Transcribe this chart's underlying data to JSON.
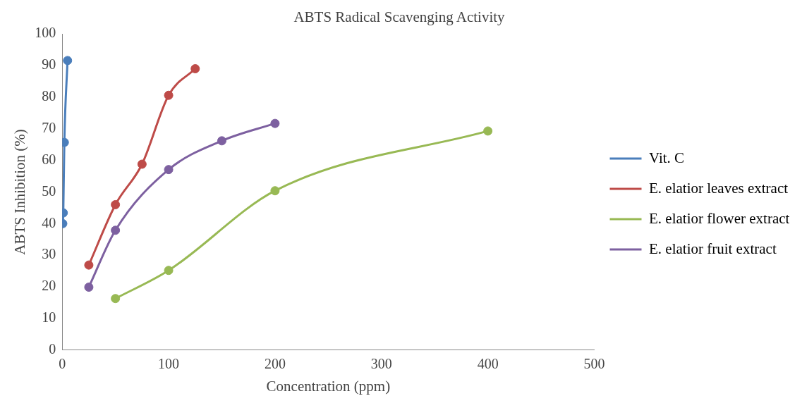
{
  "chart_data": {
    "type": "line",
    "title": "ABTS Radical Scavenging Activity",
    "xlabel": "Concentration (ppm)",
    "ylabel": "ABTS Inhibition (%)",
    "xlim": [
      0,
      500
    ],
    "xticks": [
      0,
      100,
      200,
      300,
      400,
      500
    ],
    "ylim": [
      0,
      100
    ],
    "yticks": [
      0,
      10,
      20,
      30,
      40,
      50,
      60,
      70,
      80,
      90,
      100
    ],
    "grid": false,
    "legend": "right",
    "marker": "circle",
    "line_style": "solid",
    "series": [
      {
        "name": "Vit. C",
        "color": "#4a7ebb",
        "x": [
          0.5,
          1,
          2,
          5
        ],
        "values": [
          40,
          43.4,
          65.7,
          91.6
        ]
      },
      {
        "name": "E. elatior leaves extract",
        "color": "#be4b48",
        "x": [
          25,
          50,
          75,
          100,
          125
        ],
        "values": [
          26.9,
          46,
          58.8,
          80.6,
          89
        ]
      },
      {
        "name": "E. elatior flower extract",
        "color": "#98b954",
        "x": [
          50,
          100,
          200,
          400
        ],
        "values": [
          16.3,
          25.2,
          50.4,
          69.3
        ]
      },
      {
        "name": "E. elatior fruit extract",
        "color": "#7d60a0",
        "x": [
          25,
          50,
          100,
          150,
          200
        ],
        "values": [
          19.9,
          37.9,
          57.1,
          66.2,
          71.7
        ]
      }
    ]
  }
}
